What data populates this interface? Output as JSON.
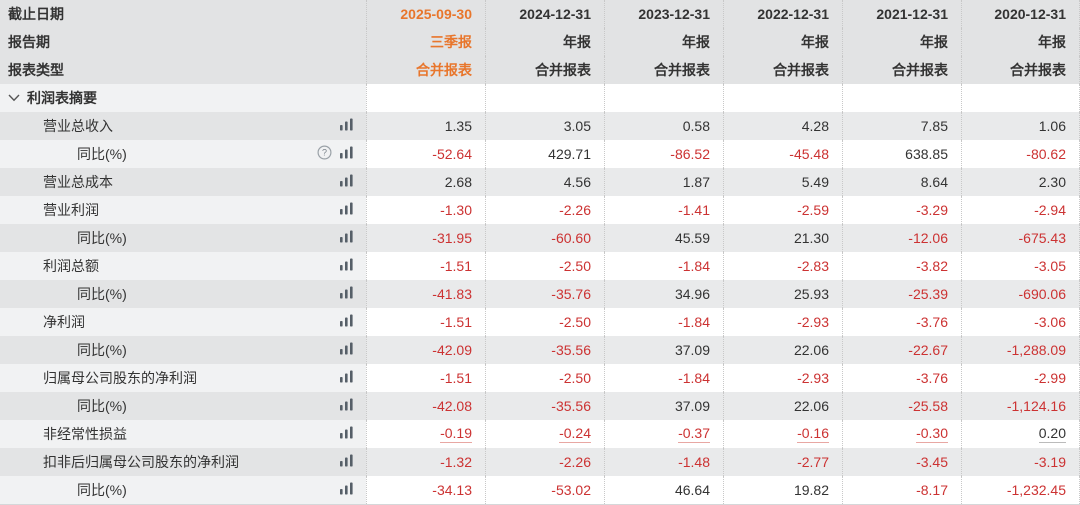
{
  "header": {
    "rows": [
      {
        "label": "截止日期",
        "values": [
          "2025-09-30",
          "2024-12-31",
          "2023-12-31",
          "2022-12-31",
          "2021-12-31",
          "2020-12-31"
        ]
      },
      {
        "label": "报告期",
        "values": [
          "三季报",
          "年报",
          "年报",
          "年报",
          "年报",
          "年报"
        ]
      },
      {
        "label": "报表类型",
        "values": [
          "合并报表",
          "合并报表",
          "合并报表",
          "合并报表",
          "合并报表",
          "合并报表"
        ]
      }
    ]
  },
  "section": {
    "title": "利润表摘要"
  },
  "rows": [
    {
      "label": "营业总收入",
      "indent": 1,
      "has_help": false,
      "underline": false,
      "values": [
        "1.35",
        "3.05",
        "0.58",
        "4.28",
        "7.85",
        "1.06"
      ]
    },
    {
      "label": "同比(%)",
      "indent": 2,
      "has_help": true,
      "underline": false,
      "values": [
        "-52.64",
        "429.71",
        "-86.52",
        "-45.48",
        "638.85",
        "-80.62"
      ]
    },
    {
      "label": "营业总成本",
      "indent": 1,
      "has_help": false,
      "underline": false,
      "values": [
        "2.68",
        "4.56",
        "1.87",
        "5.49",
        "8.64",
        "2.30"
      ]
    },
    {
      "label": "营业利润",
      "indent": 1,
      "has_help": false,
      "underline": false,
      "values": [
        "-1.30",
        "-2.26",
        "-1.41",
        "-2.59",
        "-3.29",
        "-2.94"
      ]
    },
    {
      "label": "同比(%)",
      "indent": 2,
      "has_help": false,
      "underline": false,
      "values": [
        "-31.95",
        "-60.60",
        "45.59",
        "21.30",
        "-12.06",
        "-675.43"
      ]
    },
    {
      "label": "利润总额",
      "indent": 1,
      "has_help": false,
      "underline": false,
      "values": [
        "-1.51",
        "-2.50",
        "-1.84",
        "-2.83",
        "-3.82",
        "-3.05"
      ]
    },
    {
      "label": "同比(%)",
      "indent": 2,
      "has_help": false,
      "underline": false,
      "values": [
        "-41.83",
        "-35.76",
        "34.96",
        "25.93",
        "-25.39",
        "-690.06"
      ]
    },
    {
      "label": "净利润",
      "indent": 1,
      "has_help": false,
      "underline": false,
      "values": [
        "-1.51",
        "-2.50",
        "-1.84",
        "-2.93",
        "-3.76",
        "-3.06"
      ]
    },
    {
      "label": "同比(%)",
      "indent": 2,
      "has_help": false,
      "underline": false,
      "values": [
        "-42.09",
        "-35.56",
        "37.09",
        "22.06",
        "-22.67",
        "-1,288.09"
      ]
    },
    {
      "label": "归属母公司股东的净利润",
      "indent": 1,
      "has_help": false,
      "underline": false,
      "values": [
        "-1.51",
        "-2.50",
        "-1.84",
        "-2.93",
        "-3.76",
        "-2.99"
      ]
    },
    {
      "label": "同比(%)",
      "indent": 2,
      "has_help": false,
      "underline": false,
      "values": [
        "-42.08",
        "-35.56",
        "37.09",
        "22.06",
        "-25.58",
        "-1,124.16"
      ]
    },
    {
      "label": "非经常性损益",
      "indent": 1,
      "has_help": false,
      "underline": true,
      "values": [
        "-0.19",
        "-0.24",
        "-0.37",
        "-0.16",
        "-0.30",
        "0.20"
      ]
    },
    {
      "label": "扣非后归属母公司股东的净利润",
      "indent": 1,
      "has_help": false,
      "underline": false,
      "values": [
        "-1.32",
        "-2.26",
        "-1.48",
        "-2.77",
        "-3.45",
        "-3.19"
      ]
    },
    {
      "label": "同比(%)",
      "indent": 2,
      "has_help": false,
      "underline": false,
      "values": [
        "-34.13",
        "-53.02",
        "46.64",
        "19.82",
        "-8.17",
        "-1,232.45"
      ]
    }
  ],
  "icons": {
    "bar_chart": "bar-chart-icon",
    "help": "help-icon",
    "chevron": "chevron-down-icon"
  },
  "colors": {
    "accent_orange": "#e8762c",
    "negative_red": "#cc3232",
    "text_dark": "#333333",
    "header_bg": "#e2e3e4",
    "zebra_gray": "#e9eaeb"
  }
}
